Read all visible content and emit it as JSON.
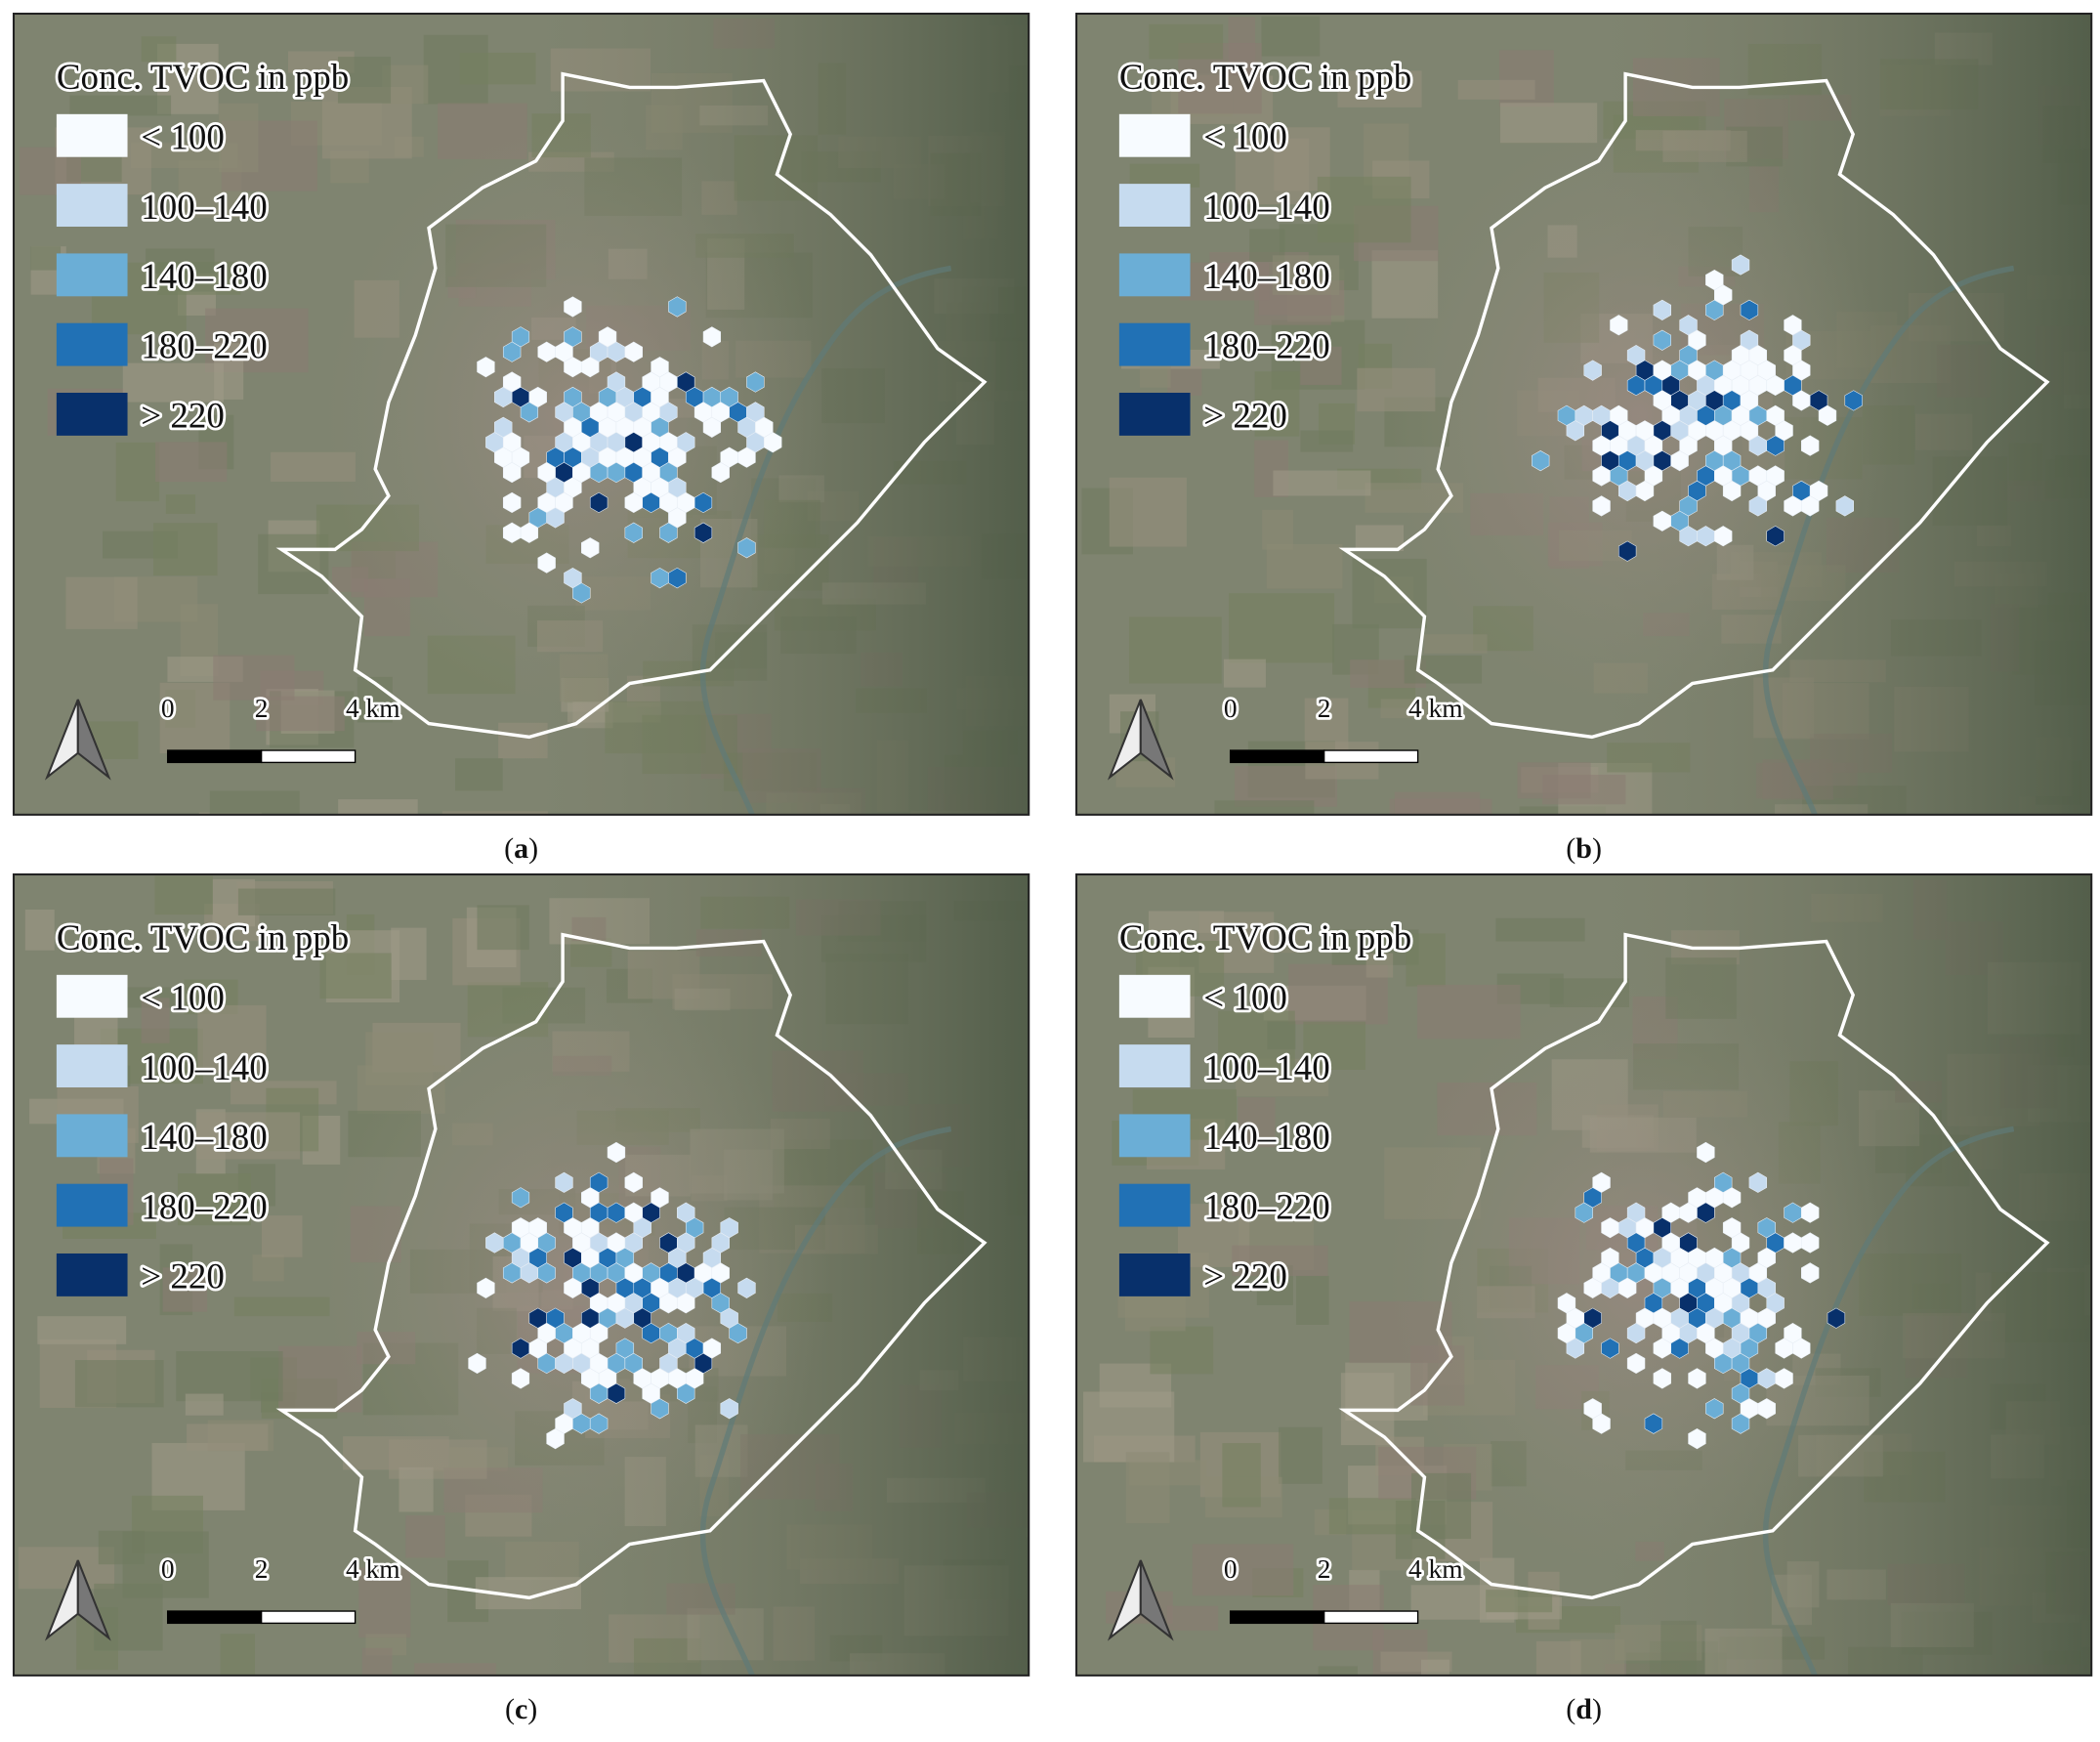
{
  "panels": [
    {
      "legend": {
        "title": "Conc. TVOC in ppb",
        "classes": [
          {
            "label": "< 100",
            "color": "#f7fbff"
          },
          {
            "label": "100–140",
            "color": "#c6dbef"
          },
          {
            "label": "140–180",
            "color": "#6baed6"
          },
          {
            "label": "180–220",
            "color": "#2171b5"
          },
          {
            "label": "> 220",
            "color": "#08306b"
          }
        ]
      },
      "scale": {
        "labels": [
          "0",
          "2",
          "4 km"
        ]
      },
      "caption": {
        "open": "(",
        "letter": "a",
        "close": ")"
      }
    },
    {
      "legend": {
        "title": "Conc. TVOC in ppb",
        "classes": [
          {
            "label": "< 100",
            "color": "#f7fbff"
          },
          {
            "label": "100–140",
            "color": "#c6dbef"
          },
          {
            "label": "140–180",
            "color": "#6baed6"
          },
          {
            "label": "180–220",
            "color": "#2171b5"
          },
          {
            "label": "> 220",
            "color": "#08306b"
          }
        ]
      },
      "scale": {
        "labels": [
          "0",
          "2",
          "4 km"
        ]
      },
      "caption": {
        "open": "(",
        "letter": "b",
        "close": ")"
      }
    },
    {
      "legend": {
        "title": "Conc. TVOC in ppb",
        "classes": [
          {
            "label": "< 100",
            "color": "#f7fbff"
          },
          {
            "label": "100–140",
            "color": "#c6dbef"
          },
          {
            "label": "140–180",
            "color": "#6baed6"
          },
          {
            "label": "180–220",
            "color": "#2171b5"
          },
          {
            "label": "> 220",
            "color": "#08306b"
          }
        ]
      },
      "scale": {
        "labels": [
          "0",
          "2",
          "4 km"
        ]
      },
      "caption": {
        "open": "(",
        "letter": "c",
        "close": ")"
      }
    },
    {
      "legend": {
        "title": "Conc. TVOC in ppb",
        "classes": [
          {
            "label": "< 100",
            "color": "#f7fbff"
          },
          {
            "label": "100–140",
            "color": "#c6dbef"
          },
          {
            "label": "140–180",
            "color": "#6baed6"
          },
          {
            "label": "180–220",
            "color": "#2171b5"
          },
          {
            "label": "> 220",
            "color": "#08306b"
          }
        ]
      },
      "scale": {
        "labels": [
          "0",
          "2",
          "4 km"
        ]
      },
      "caption": {
        "open": "(",
        "letter": "d",
        "close": ")"
      }
    }
  ]
}
